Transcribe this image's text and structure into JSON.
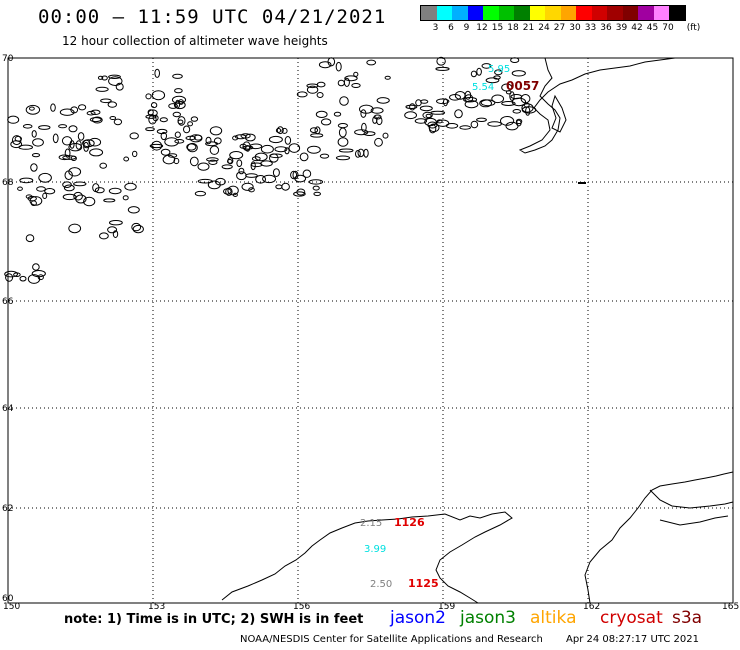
{
  "title": "00:00 – 11:59 UTC 04/21/2021",
  "subtitle": "12 hour collection of altimeter wave heights",
  "legend": {
    "unit": "(ft)",
    "colors": [
      "#808080",
      "#00ffff",
      "#00b0ff",
      "#0000ff",
      "#00ff00",
      "#00c000",
      "#008000",
      "#ffff00",
      "#ffd700",
      "#ffa500",
      "#ff0000",
      "#d00000",
      "#a00000",
      "#800000",
      "#a000a0",
      "#ff80ff",
      "#000000"
    ],
    "ticks": [
      "3",
      "6",
      "9",
      "12",
      "15",
      "18",
      "21",
      "24",
      "27",
      "30",
      "33",
      "36",
      "39",
      "42",
      "45",
      "70"
    ]
  },
  "map": {
    "lat_labels": [
      "70",
      "68",
      "66",
      "64",
      "62",
      "60"
    ],
    "lon_labels": [
      "150",
      "153",
      "156",
      "159",
      "162",
      "165"
    ],
    "observations": [
      {
        "text": "5.95",
        "color": "#00e0e0"
      },
      {
        "text": "5.54",
        "color": "#00e0e0"
      },
      {
        "text": "0057",
        "color": "#800000"
      },
      {
        "text": "2.15",
        "color": "#808080"
      },
      {
        "text": "1126",
        "color": "#e00000"
      },
      {
        "text": "3.99",
        "color": "#00e0e0"
      },
      {
        "text": "2.50",
        "color": "#808080"
      },
      {
        "text": "1125",
        "color": "#e00000"
      }
    ]
  },
  "note": "note:  1) Time is in UTC;  2) SWH is in feet",
  "satellites": [
    {
      "name": "jason2",
      "color": "#0000ff"
    },
    {
      "name": "jason3",
      "color": "#008000"
    },
    {
      "name": "altika",
      "color": "#ffa500"
    },
    {
      "name": "cryosat",
      "color": "#d00000"
    },
    {
      "name": "s3a",
      "color": "#800000"
    }
  ],
  "footer": {
    "credit": "NOAA/NESDIS Center for Satellite Applications and Research",
    "timestamp": "Apr 24 08:27:17 UTC 2021"
  }
}
